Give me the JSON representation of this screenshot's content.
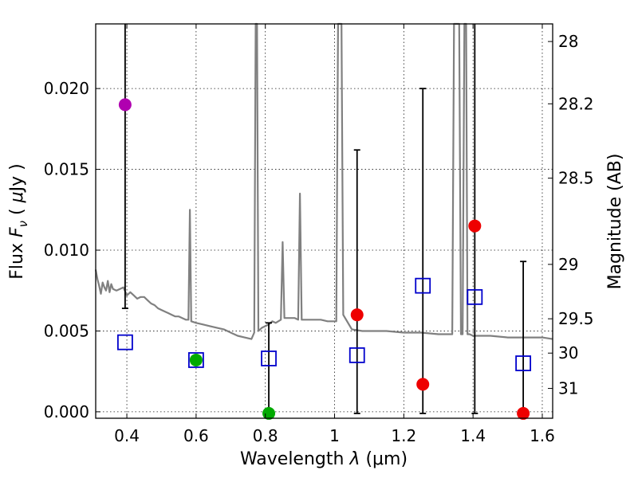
{
  "chart_data": {
    "type": "scatter",
    "title": "",
    "xlabel": "Wavelength  λ (μm)",
    "xlabel_main": "Wavelength  ",
    "xlabel_lambda": "λ",
    "xlabel_unit": " (μm)",
    "ylabel": "Flux  Fν  ( μJy )",
    "ylabel_main": "Flux  ",
    "ylabel_F": "F",
    "ylabel_nu": "ν",
    "ylabel_unit_open": "  ( ",
    "ylabel_mu": "μ",
    "ylabel_unit_close": "Jy )",
    "y2label": "Magnitude (AB)",
    "xlim": [
      0.31,
      1.63
    ],
    "ylim": [
      -0.0004,
      0.024
    ],
    "x_ticks": [
      {
        "value": 0.4,
        "label": "0.4"
      },
      {
        "value": 0.6,
        "label": "0.6"
      },
      {
        "value": 0.8,
        "label": "0.8"
      },
      {
        "value": 1.0,
        "label": "1"
      },
      {
        "value": 1.2,
        "label": "1.2"
      },
      {
        "value": 1.4,
        "label": "1.4"
      },
      {
        "value": 1.6,
        "label": "1.6"
      }
    ],
    "y_ticks": [
      {
        "value": 0.0,
        "label": "0.000"
      },
      {
        "value": 0.005,
        "label": "0.005"
      },
      {
        "value": 0.01,
        "label": "0.010"
      },
      {
        "value": 0.015,
        "label": "0.015"
      },
      {
        "value": 0.02,
        "label": "0.020"
      }
    ],
    "y2_ticks": [
      {
        "value": 28,
        "label": "28"
      },
      {
        "value": 28.2,
        "label": "28.2"
      },
      {
        "value": 28.5,
        "label": "28.5"
      },
      {
        "value": 29,
        "label": "29"
      },
      {
        "value": 29.5,
        "label": "29.5"
      },
      {
        "value": 30,
        "label": "30"
      },
      {
        "value": 31,
        "label": "31"
      }
    ],
    "grid": true,
    "model_sed": {
      "name": "model",
      "color": "#808080",
      "points": [
        [
          0.31,
          0.0088
        ],
        [
          0.315,
          0.0082
        ],
        [
          0.32,
          0.0078
        ],
        [
          0.325,
          0.0073
        ],
        [
          0.33,
          0.008
        ],
        [
          0.335,
          0.0077
        ],
        [
          0.34,
          0.0075
        ],
        [
          0.345,
          0.0081
        ],
        [
          0.35,
          0.0074
        ],
        [
          0.355,
          0.0079
        ],
        [
          0.36,
          0.0076
        ],
        [
          0.37,
          0.0075
        ],
        [
          0.38,
          0.0076
        ],
        [
          0.39,
          0.0077
        ],
        [
          0.4,
          0.0072
        ],
        [
          0.41,
          0.0074
        ],
        [
          0.42,
          0.0072
        ],
        [
          0.43,
          0.007
        ],
        [
          0.44,
          0.0071
        ],
        [
          0.45,
          0.0071
        ],
        [
          0.46,
          0.0069
        ],
        [
          0.47,
          0.0067
        ],
        [
          0.48,
          0.0066
        ],
        [
          0.49,
          0.0064
        ],
        [
          0.5,
          0.0063
        ],
        [
          0.51,
          0.0062
        ],
        [
          0.52,
          0.0061
        ],
        [
          0.53,
          0.006
        ],
        [
          0.54,
          0.0059
        ],
        [
          0.55,
          0.0059
        ],
        [
          0.56,
          0.0058
        ],
        [
          0.57,
          0.0057
        ],
        [
          0.578,
          0.0057
        ],
        [
          0.582,
          0.0125
        ],
        [
          0.586,
          0.0056
        ],
        [
          0.6,
          0.0055
        ],
        [
          0.62,
          0.0054
        ],
        [
          0.64,
          0.0053
        ],
        [
          0.66,
          0.0052
        ],
        [
          0.68,
          0.0051
        ],
        [
          0.7,
          0.0049
        ],
        [
          0.72,
          0.0047
        ],
        [
          0.74,
          0.0046
        ],
        [
          0.76,
          0.0045
        ],
        [
          0.768,
          0.0049
        ],
        [
          0.772,
          0.024
        ],
        [
          0.776,
          0.024
        ],
        [
          0.78,
          0.005
        ],
        [
          0.79,
          0.0052
        ],
        [
          0.8,
          0.0053
        ],
        [
          0.81,
          0.0054
        ],
        [
          0.82,
          0.0056
        ],
        [
          0.83,
          0.0055
        ],
        [
          0.845,
          0.0057
        ],
        [
          0.85,
          0.0105
        ],
        [
          0.855,
          0.0058
        ],
        [
          0.87,
          0.0058
        ],
        [
          0.885,
          0.0058
        ],
        [
          0.895,
          0.0057
        ],
        [
          0.9,
          0.0135
        ],
        [
          0.905,
          0.0057
        ],
        [
          0.92,
          0.0057
        ],
        [
          0.94,
          0.0057
        ],
        [
          0.96,
          0.0057
        ],
        [
          0.98,
          0.0056
        ],
        [
          1.0,
          0.0056
        ],
        [
          1.005,
          0.0056
        ],
        [
          1.01,
          0.024
        ],
        [
          1.02,
          0.024
        ],
        [
          1.025,
          0.006
        ],
        [
          1.05,
          0.0051
        ],
        [
          1.08,
          0.005
        ],
        [
          1.1,
          0.005
        ],
        [
          1.15,
          0.005
        ],
        [
          1.2,
          0.0049
        ],
        [
          1.25,
          0.0049
        ],
        [
          1.3,
          0.0048
        ],
        [
          1.34,
          0.0048
        ],
        [
          1.345,
          0.024
        ],
        [
          1.36,
          0.024
        ],
        [
          1.365,
          0.0048
        ],
        [
          1.37,
          0.0048
        ],
        [
          1.375,
          0.024
        ],
        [
          1.38,
          0.024
        ],
        [
          1.384,
          0.0048
        ],
        [
          1.39,
          0.0048
        ],
        [
          1.4,
          0.0047
        ],
        [
          1.45,
          0.0047
        ],
        [
          1.5,
          0.0046
        ],
        [
          1.55,
          0.0046
        ],
        [
          1.6,
          0.0046
        ],
        [
          1.63,
          0.0045
        ]
      ]
    },
    "series": [
      {
        "name": "model-photometry",
        "marker": "open-square",
        "color": "#0000cc",
        "points": [
          {
            "x": 0.395,
            "y": 0.0043
          },
          {
            "x": 0.6,
            "y": 0.0032
          },
          {
            "x": 0.81,
            "y": 0.0033
          },
          {
            "x": 1.065,
            "y": 0.0035
          },
          {
            "x": 1.255,
            "y": 0.0078
          },
          {
            "x": 1.405,
            "y": 0.0071
          },
          {
            "x": 1.545,
            "y": 0.003
          }
        ]
      },
      {
        "name": "observed-flux",
        "marker": "filled-circle",
        "points": [
          {
            "x": 0.395,
            "y": 0.019,
            "color": "#b000b0",
            "err_low": 0.0064,
            "err_high": 0.024
          },
          {
            "x": 0.6,
            "y": 0.0032,
            "color": "#00aa00"
          },
          {
            "x": 0.81,
            "y": -0.0001,
            "color": "#00aa00",
            "err_low": -0.0001,
            "err_high": 0.0055
          },
          {
            "x": 1.065,
            "y": 0.006,
            "color": "#ee0000",
            "err_low": -0.0001,
            "err_high": 0.0162
          },
          {
            "x": 1.255,
            "y": 0.0017,
            "color": "#ee0000",
            "err_low": -0.0001,
            "err_high": 0.02
          },
          {
            "x": 1.405,
            "y": 0.0115,
            "color": "#ee0000",
            "err_low": -0.0001,
            "err_high": 0.024
          },
          {
            "x": 1.545,
            "y": -0.0001,
            "color": "#ee0000",
            "err_low": -0.0001,
            "err_high": 0.0093
          }
        ]
      }
    ]
  }
}
